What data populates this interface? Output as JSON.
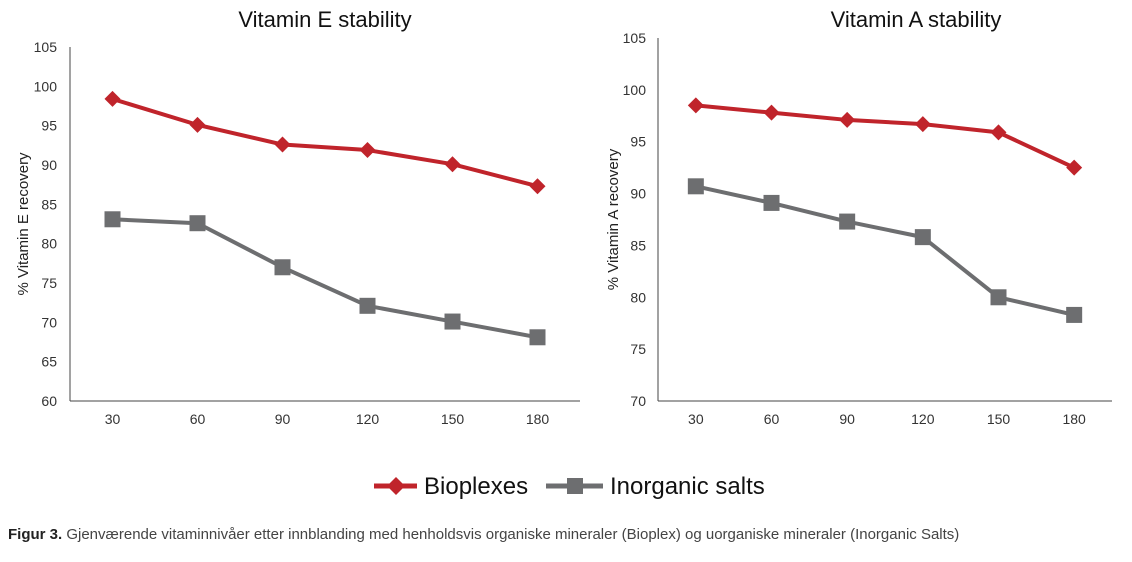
{
  "chart_data": [
    {
      "type": "line",
      "title": "Vitamin E stability",
      "xlabel": "",
      "ylabel": "% Vitamin E recovery",
      "x": [
        30,
        60,
        90,
        120,
        150,
        180
      ],
      "ylim": [
        60,
        105
      ],
      "yticks": [
        60,
        65,
        70,
        75,
        80,
        85,
        90,
        95,
        100,
        105
      ],
      "grid": false,
      "series": [
        {
          "name": "Bioplexes",
          "color": "#C0242B",
          "marker": "diamond",
          "values": [
            98.4,
            95.1,
            92.6,
            91.9,
            90.1,
            87.3
          ]
        },
        {
          "name": "Inorganic salts",
          "color": "#6D6E70",
          "marker": "square",
          "values": [
            83.1,
            82.6,
            77.0,
            72.1,
            70.1,
            68.1
          ]
        }
      ]
    },
    {
      "type": "line",
      "title": "Vitamin A stability",
      "xlabel": "",
      "ylabel": "% Vitamin A recovery",
      "x": [
        30,
        60,
        90,
        120,
        150,
        180
      ],
      "ylim": [
        70,
        105
      ],
      "yticks": [
        70,
        75,
        80,
        85,
        90,
        95,
        100,
        105
      ],
      "grid": false,
      "series": [
        {
          "name": "Bioplexes",
          "color": "#C0242B",
          "marker": "diamond",
          "values": [
            98.5,
            97.8,
            97.1,
            96.7,
            95.9,
            92.5
          ]
        },
        {
          "name": "Inorganic salts",
          "color": "#6D6E70",
          "marker": "square",
          "values": [
            90.7,
            89.1,
            87.3,
            85.8,
            80.0,
            78.3
          ]
        }
      ]
    }
  ],
  "legend": {
    "placement": "bottom-center",
    "items": [
      {
        "label": "Bioplexes",
        "color": "#C0242B",
        "marker": "diamond"
      },
      {
        "label": "Inorganic salts",
        "color": "#6D6E70",
        "marker": "square"
      }
    ]
  },
  "caption": {
    "label": "Figur 3.",
    "text": " Gjenværende vitaminnivåer etter innblanding med henholdsvis organiske mineraler (Bioplex) og uorganiske mineraler (Inorganic Salts)"
  }
}
